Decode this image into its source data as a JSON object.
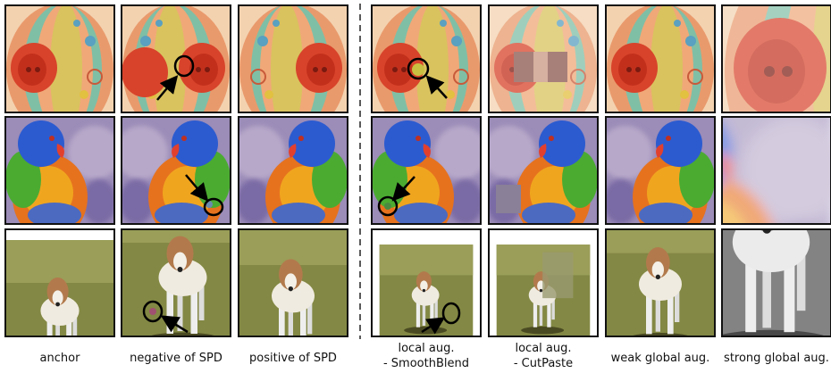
{
  "captions": [
    [
      "anchor"
    ],
    [
      "negative of SPD"
    ],
    [
      "positive of SPD"
    ],
    [
      "local aug.",
      "- SmoothBlend"
    ],
    [
      "local aug.",
      "- CutPaste"
    ],
    [
      "weak global aug."
    ],
    [
      "strong global aug."
    ]
  ]
}
